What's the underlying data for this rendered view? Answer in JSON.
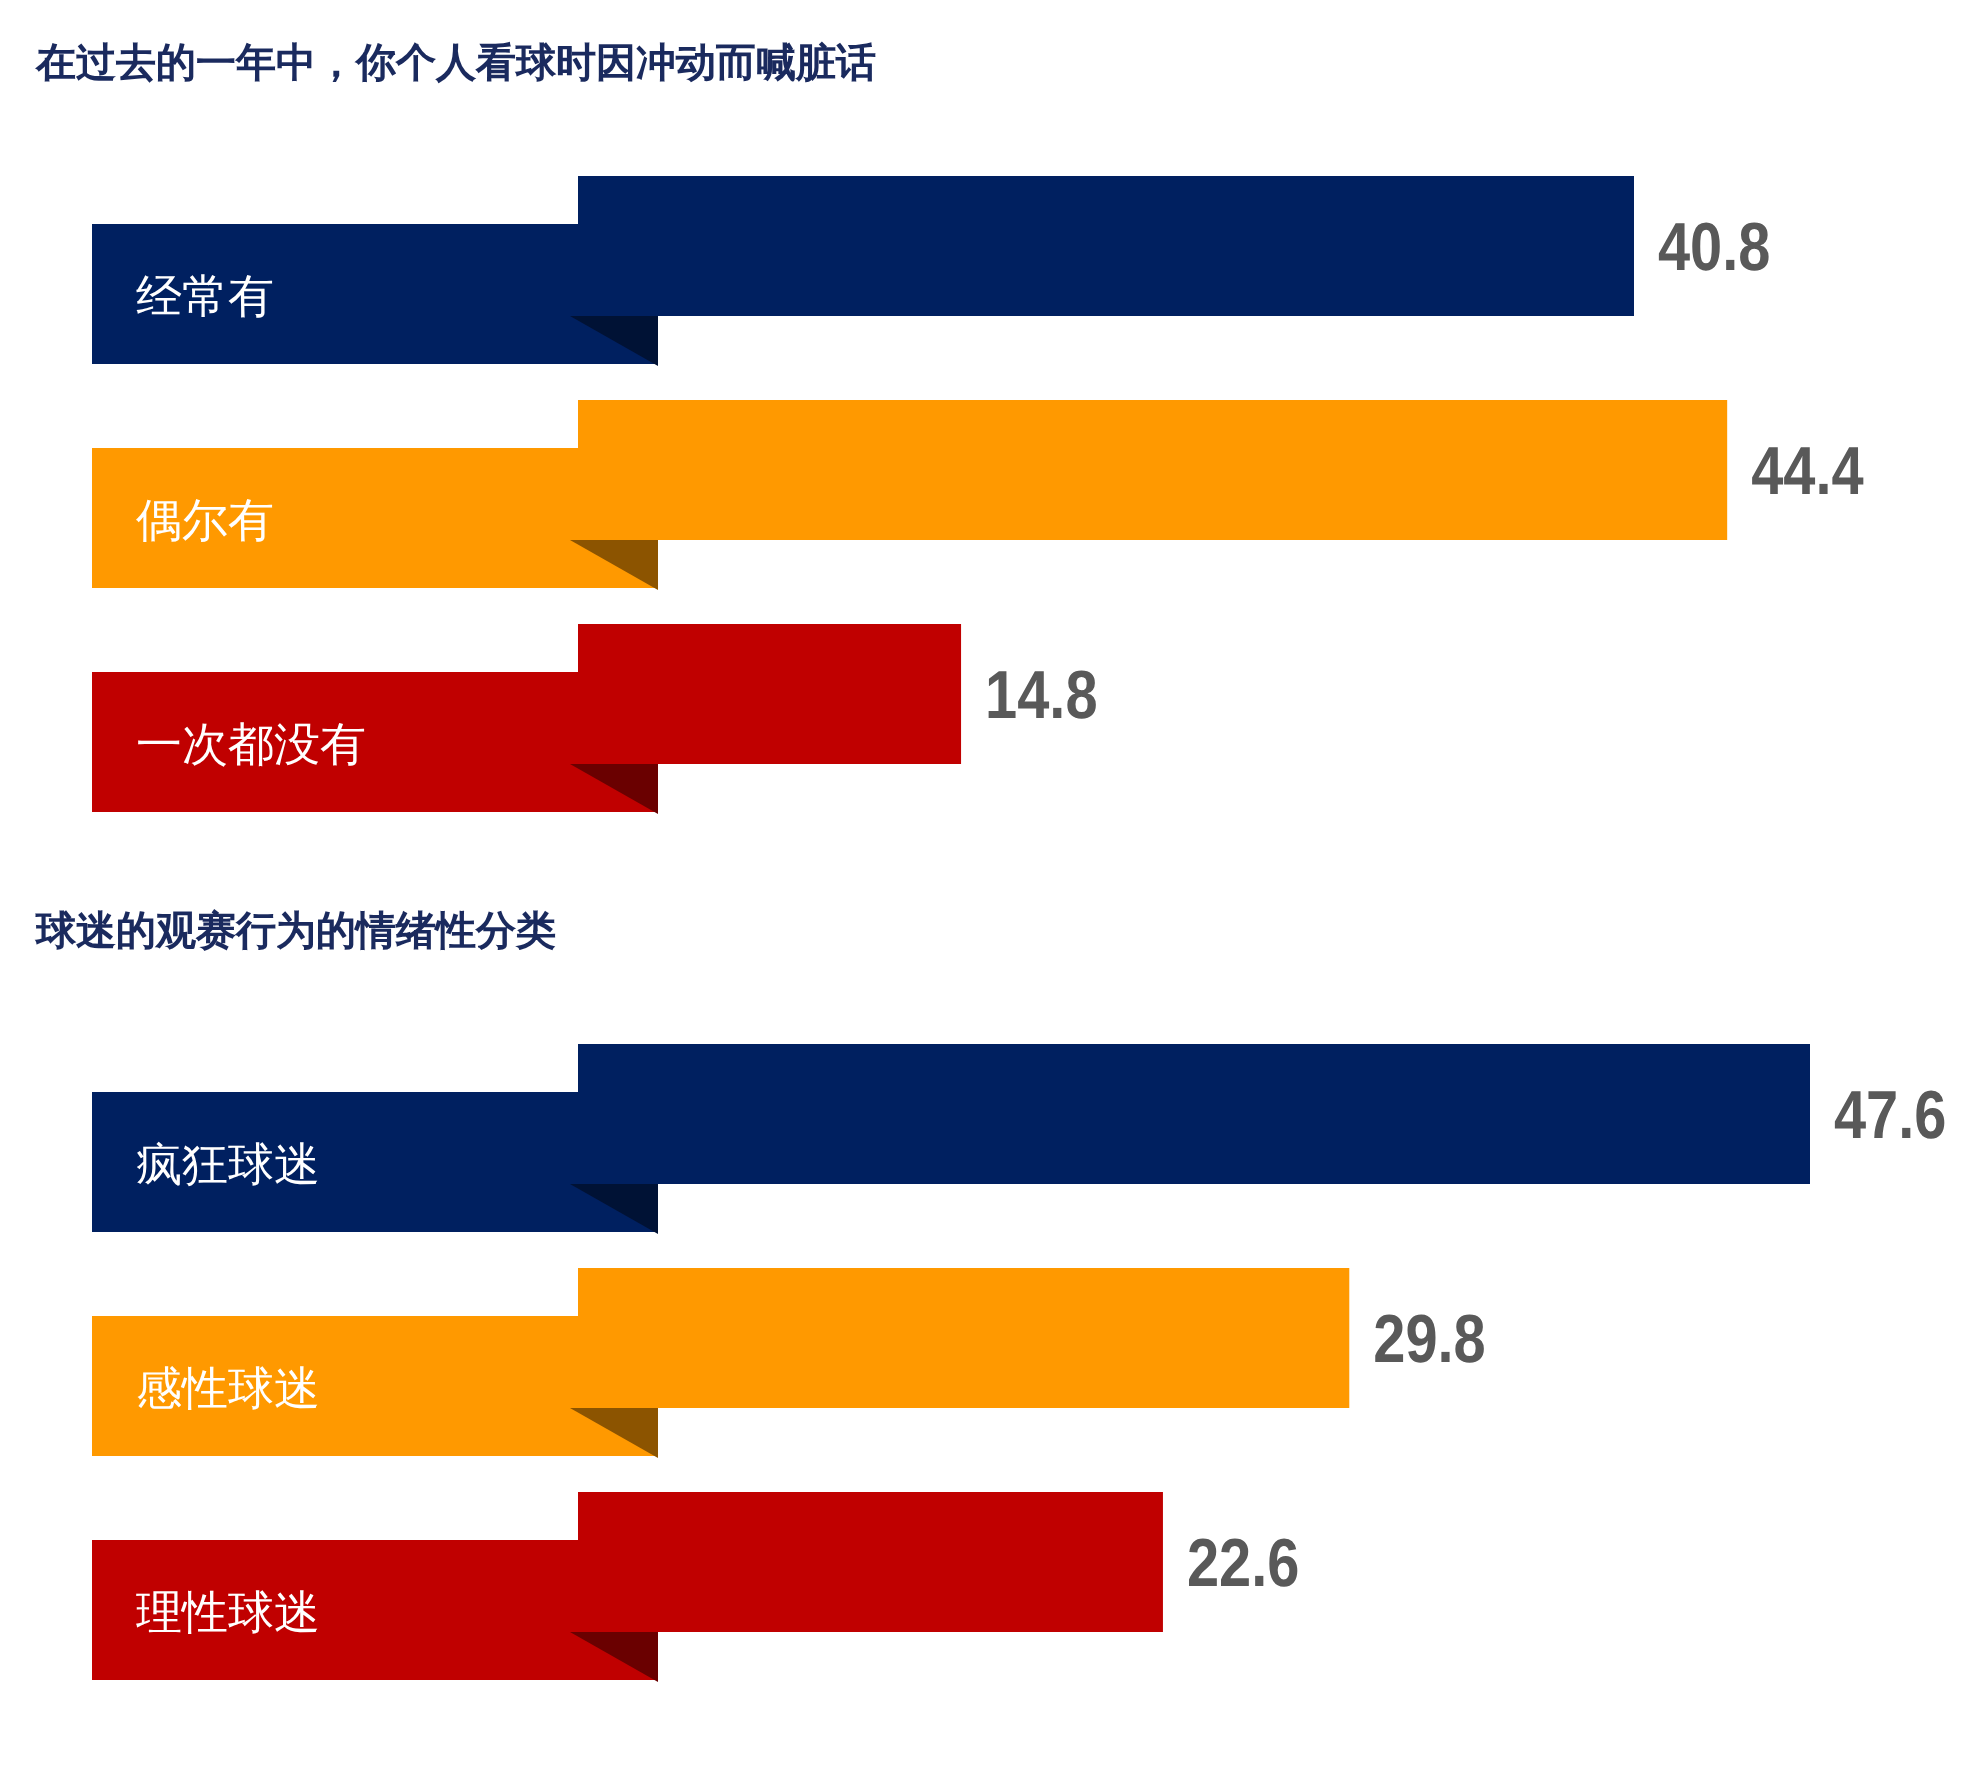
{
  "chart_data": [
    {
      "type": "bar",
      "orientation": "horizontal",
      "title": "在过去的一年中，你个人看球时因冲动而喊脏话",
      "categories": [
        "经常有",
        "偶尔有",
        "一次都没有"
      ],
      "values": [
        40.8,
        44.4,
        14.8
      ],
      "colors": [
        "#002060",
        "#ff9900",
        "#c00000"
      ],
      "data_labels": true
    },
    {
      "type": "bar",
      "orientation": "horizontal",
      "title": "球迷的观赛行为的情绪性分类",
      "categories": [
        "疯狂球迷",
        "感性球迷",
        "理性球迷"
      ],
      "values": [
        47.6,
        29.8,
        22.6
      ],
      "colors": [
        "#002060",
        "#ff9900",
        "#c00000"
      ],
      "data_labels": true
    }
  ]
}
